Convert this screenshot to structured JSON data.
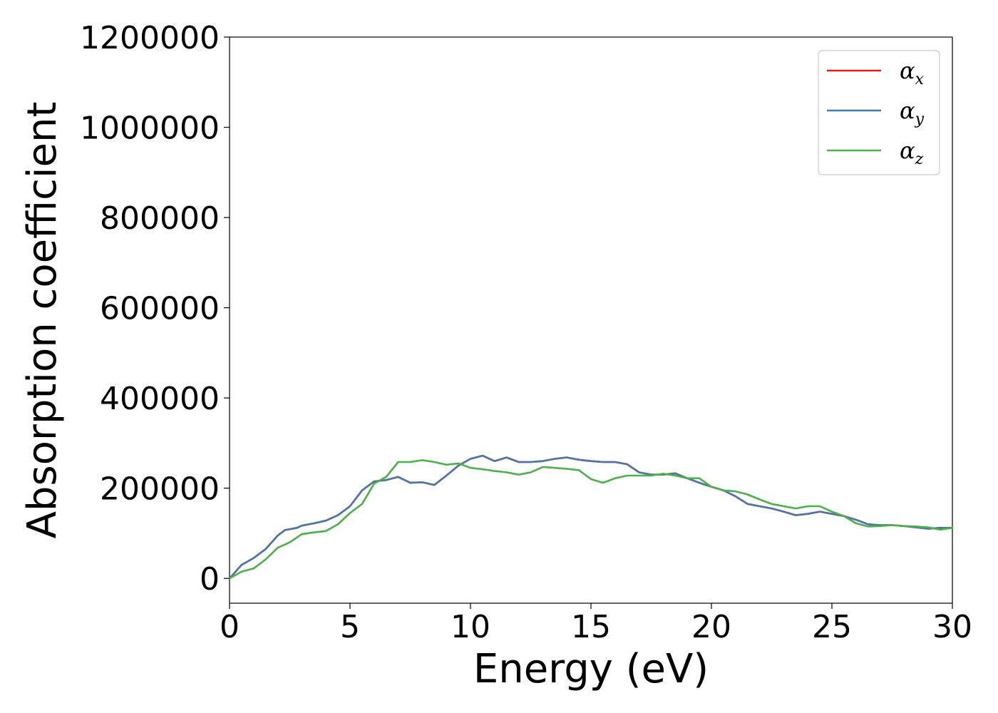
{
  "chart_data": {
    "type": "line",
    "xlabel": "Energy (eV)",
    "ylabel": "Absorption coefficient",
    "xlim": [
      0,
      30
    ],
    "ylim": [
      -55000,
      1200000
    ],
    "xticks": [
      0,
      5,
      10,
      15,
      20,
      25,
      30
    ],
    "yticks": [
      0,
      200000,
      400000,
      600000,
      800000,
      1000000,
      1200000
    ],
    "grid": false,
    "legend_position": "top-right",
    "series": [
      {
        "name": "α",
        "subscript": "x",
        "color": "#e41a1c",
        "x": [
          0,
          0.5,
          1,
          1.5,
          2,
          2.3,
          2.8,
          3,
          3.5,
          4,
          4.5,
          5,
          5.5,
          6,
          6.5,
          7,
          7.5,
          8,
          8.5,
          9,
          9.5,
          10,
          10.5,
          11,
          11.5,
          12,
          12.5,
          13,
          13.5,
          14,
          14.5,
          15,
          15.5,
          16,
          16.5,
          17,
          17.5,
          18,
          18.5,
          19,
          19.5,
          20,
          20.5,
          21,
          21.5,
          22,
          22.5,
          23,
          23.5,
          24,
          24.5,
          25,
          25.5,
          26,
          26.5,
          27,
          27.5,
          28,
          28.5,
          29,
          29.5,
          30
        ],
        "y": [
          0,
          30000,
          45000,
          65000,
          95000,
          107000,
          112000,
          117000,
          122000,
          128000,
          140000,
          160000,
          195000,
          215000,
          218000,
          225000,
          212000,
          213000,
          207000,
          228000,
          250000,
          265000,
          272000,
          260000,
          268000,
          258000,
          258000,
          260000,
          265000,
          268000,
          263000,
          260000,
          258000,
          258000,
          253000,
          235000,
          230000,
          230000,
          233000,
          222000,
          212000,
          203000,
          195000,
          182000,
          165000,
          160000,
          155000,
          148000,
          140000,
          143000,
          148000,
          143000,
          138000,
          130000,
          120000,
          118000,
          118000,
          116000,
          113000,
          110000,
          112000,
          112000
        ]
      },
      {
        "name": "α",
        "subscript": "y",
        "color": "#4a77aa",
        "x": [
          0,
          0.5,
          1,
          1.5,
          2,
          2.3,
          2.8,
          3,
          3.5,
          4,
          4.5,
          5,
          5.5,
          6,
          6.5,
          7,
          7.5,
          8,
          8.5,
          9,
          9.5,
          10,
          10.5,
          11,
          11.5,
          12,
          12.5,
          13,
          13.5,
          14,
          14.5,
          15,
          15.5,
          16,
          16.5,
          17,
          17.5,
          18,
          18.5,
          19,
          19.5,
          20,
          20.5,
          21,
          21.5,
          22,
          22.5,
          23,
          23.5,
          24,
          24.5,
          25,
          25.5,
          26,
          26.5,
          27,
          27.5,
          28,
          28.5,
          29,
          29.5,
          30
        ],
        "y": [
          0,
          30000,
          45000,
          65000,
          95000,
          107000,
          112000,
          117000,
          122000,
          128000,
          140000,
          160000,
          195000,
          215000,
          218000,
          225000,
          212000,
          213000,
          207000,
          228000,
          250000,
          265000,
          272000,
          260000,
          268000,
          258000,
          258000,
          260000,
          265000,
          268000,
          263000,
          260000,
          258000,
          258000,
          253000,
          235000,
          230000,
          230000,
          233000,
          222000,
          212000,
          203000,
          195000,
          182000,
          165000,
          160000,
          155000,
          148000,
          140000,
          143000,
          148000,
          143000,
          138000,
          130000,
          120000,
          118000,
          118000,
          116000,
          113000,
          110000,
          112000,
          112000
        ]
      },
      {
        "name": "α",
        "subscript": "z",
        "color": "#4daf4a",
        "x": [
          0,
          0.5,
          1,
          1.5,
          2,
          2.5,
          3,
          3.5,
          4,
          4.5,
          5,
          5.5,
          6,
          6.5,
          7,
          7.5,
          8,
          8.5,
          9,
          9.5,
          10,
          10.5,
          11,
          11.5,
          12,
          12.5,
          13,
          13.5,
          14,
          14.5,
          15,
          15.5,
          16,
          16.5,
          17,
          17.5,
          18,
          18.5,
          19,
          19.5,
          20,
          20.5,
          21,
          21.5,
          22,
          22.5,
          23,
          23.5,
          24,
          24.5,
          25,
          25.5,
          26,
          26.5,
          27,
          27.5,
          28,
          28.5,
          29,
          29.5,
          30
        ],
        "y": [
          0,
          15000,
          22000,
          42000,
          68000,
          80000,
          98000,
          102000,
          105000,
          120000,
          145000,
          165000,
          210000,
          225000,
          258000,
          258000,
          262000,
          258000,
          252000,
          255000,
          245000,
          242000,
          238000,
          235000,
          230000,
          235000,
          247000,
          245000,
          243000,
          240000,
          220000,
          212000,
          222000,
          228000,
          228000,
          228000,
          232000,
          228000,
          222000,
          222000,
          203000,
          195000,
          193000,
          186000,
          175000,
          165000,
          160000,
          155000,
          160000,
          160000,
          148000,
          138000,
          122000,
          115000,
          116000,
          118000,
          116000,
          115000,
          113000,
          108000,
          112000
        ]
      }
    ]
  }
}
